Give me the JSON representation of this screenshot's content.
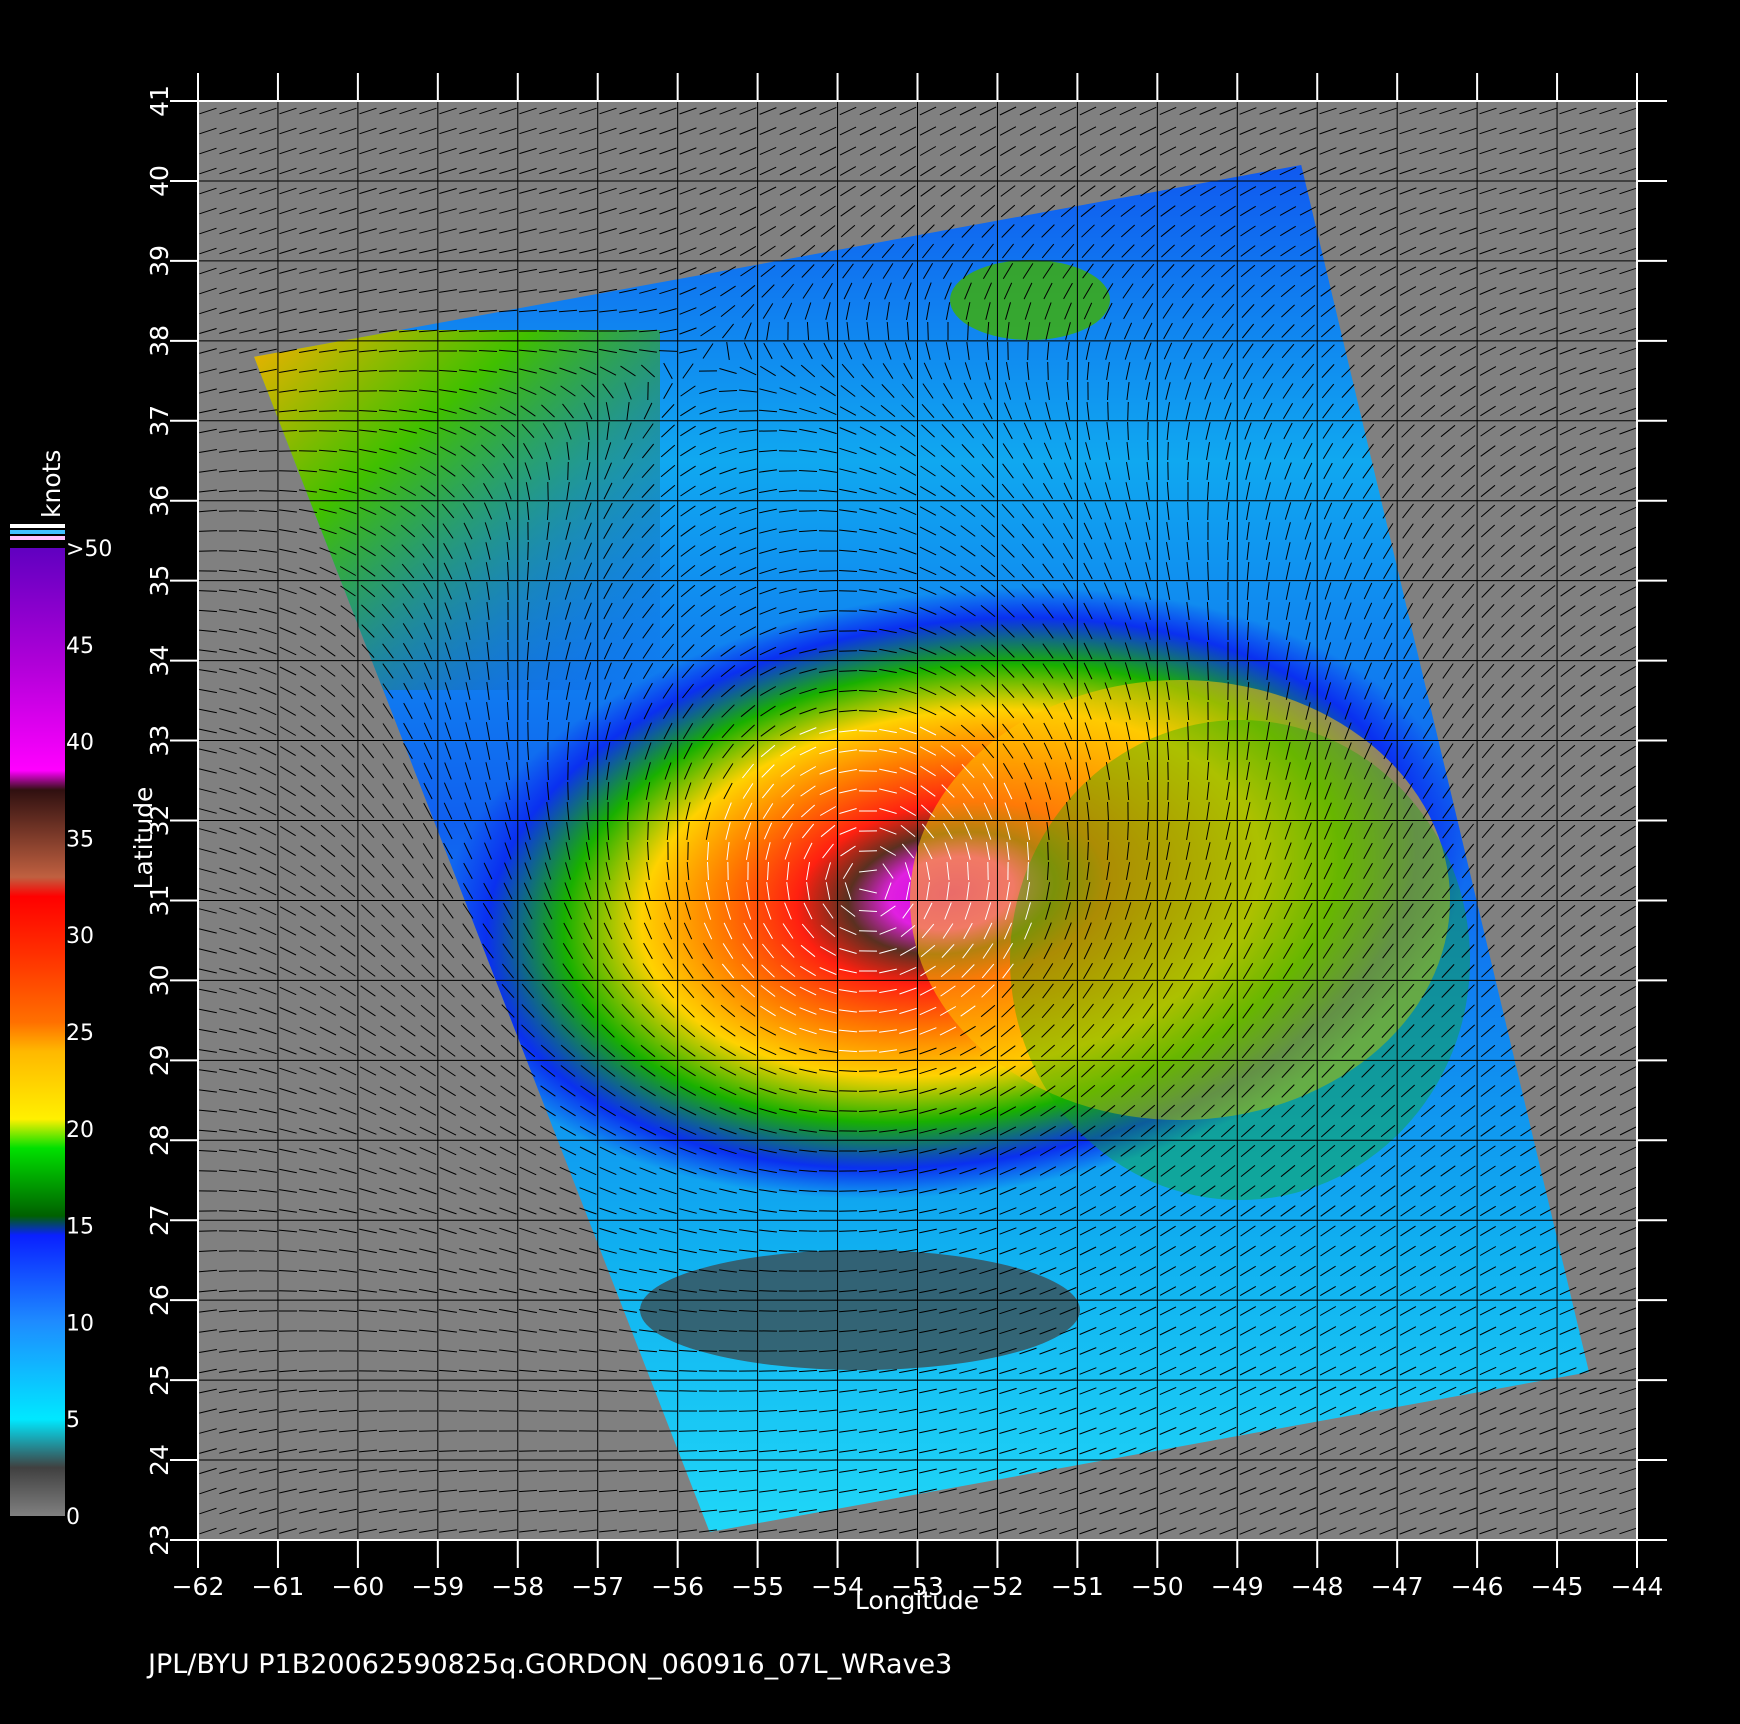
{
  "map": {
    "xlabel": "Longitude",
    "ylabel": "Latitude",
    "lon_range": [
      -62,
      -44
    ],
    "lat_range": [
      23,
      41
    ],
    "lon_ticks": [
      "-62",
      "-61",
      "-60",
      "-59",
      "-58",
      "-57",
      "-56",
      "-55",
      "-54",
      "-53",
      "-52",
      "-51",
      "-50",
      "-49",
      "-48",
      "-47",
      "-46",
      "-45",
      "-44"
    ],
    "lat_ticks": [
      "23",
      "24",
      "25",
      "26",
      "27",
      "28",
      "29",
      "30",
      "31",
      "32",
      "33",
      "34",
      "35",
      "36",
      "37",
      "38",
      "39",
      "40",
      "41"
    ],
    "swath_corners_lonlat": [
      [
        -61.3,
        37.8
      ],
      [
        -48.2,
        40.2
      ],
      [
        -44.6,
        25.1
      ],
      [
        -55.6,
        23.1
      ]
    ],
    "storm_center_lonlat": [
      -53.6,
      31.2
    ],
    "background_color": "#808080",
    "grid_color": "#000000"
  },
  "colorbar": {
    "title": "knots",
    "stops": [
      {
        "value": "0",
        "color": "#808080"
      },
      {
        "value": "5",
        "color": "#00e5ff"
      },
      {
        "value": "10",
        "color": "#1e8cff"
      },
      {
        "value": "15",
        "color": "#0a2dff"
      },
      {
        "value": "20",
        "color": "#00c800"
      },
      {
        "value": "25",
        "color": "#ffd000"
      },
      {
        "value": "30",
        "color": "#ff5a00"
      },
      {
        "value": "35",
        "color": "#ff1a1a"
      },
      {
        "value": "40",
        "color": "#7a3a20"
      },
      {
        "value": "45",
        "color": "#ff00ff"
      },
      {
        "value": ">50",
        "color": "#7000c8"
      }
    ]
  },
  "footer": {
    "caption": "JPL/BYU  P1B20062590825q.GORDON_060916_07L_WRave3"
  }
}
